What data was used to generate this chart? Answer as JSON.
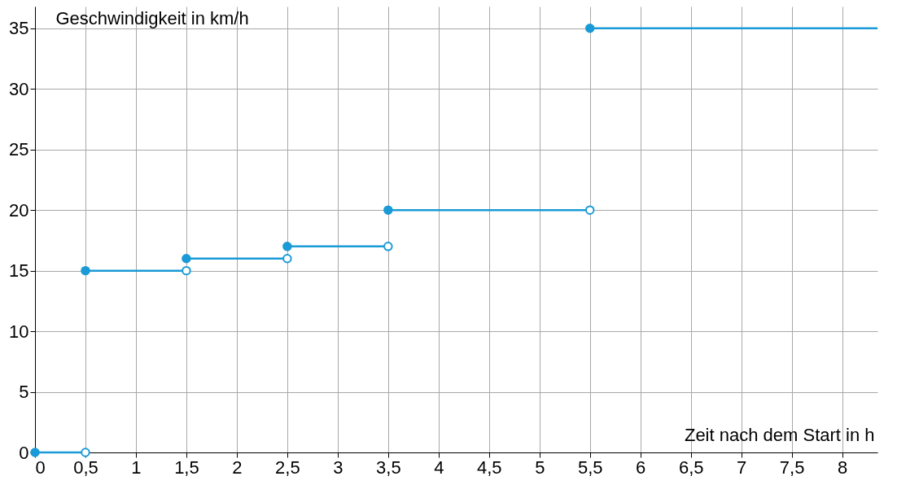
{
  "chart_data": {
    "type": "line",
    "xlabel": "Zeit nach dem Start in h",
    "ylabel": "Geschwindigkeit in km/h",
    "xlim": [
      0,
      8.35
    ],
    "ylim": [
      0,
      36.8
    ],
    "xticks": [
      0,
      {
        "value": 0.5,
        "label": "0,5"
      },
      1,
      {
        "value": 1.5,
        "label": "1,5"
      },
      2,
      {
        "value": 2.5,
        "label": "2,5"
      },
      3,
      {
        "value": 3.5,
        "label": "3,5"
      },
      4,
      {
        "value": 4.5,
        "label": "4,5"
      },
      5,
      {
        "value": 5.5,
        "label": "5,5"
      },
      6,
      {
        "value": 6.5,
        "label": "6,5"
      },
      7,
      {
        "value": 7.5,
        "label": "7,5"
      },
      8
    ],
    "yticks": [
      0,
      5,
      10,
      15,
      20,
      25,
      30,
      35
    ],
    "grid": true,
    "series": [
      {
        "color": "#1a9ad6",
        "x": [
          0,
          0.5
        ],
        "values": [
          0,
          0
        ]
      },
      {
        "color": "#1a9ad6",
        "x": [
          0.5,
          1.5
        ],
        "values": [
          15,
          15
        ]
      },
      {
        "color": "#1a9ad6",
        "x": [
          1.5,
          2.5
        ],
        "values": [
          16,
          16
        ]
      },
      {
        "color": "#1a9ad6",
        "x": [
          2.5,
          3.5
        ],
        "values": [
          17,
          17
        ]
      },
      {
        "color": "#1a9ad6",
        "x": [
          3.5,
          5.5
        ],
        "values": [
          20,
          20
        ]
      },
      {
        "color": "#1a9ad6",
        "x": [
          5.5,
          8.35
        ],
        "values": [
          35,
          35
        ]
      },
      {
        "type": "scatter",
        "color": "#1a9ad6",
        "marker": "circle",
        "x": [
          0,
          0.5,
          1.5,
          2.5,
          3.5,
          5.5
        ],
        "values": [
          0,
          15,
          16,
          17,
          20,
          35
        ]
      },
      {
        "type": "scatter",
        "color": "#ffffff",
        "marker": "circle",
        "x": [
          0.5,
          1.5,
          2.5,
          3.5,
          5.5
        ],
        "values": [
          0,
          15,
          16,
          17,
          20
        ]
      }
    ]
  }
}
